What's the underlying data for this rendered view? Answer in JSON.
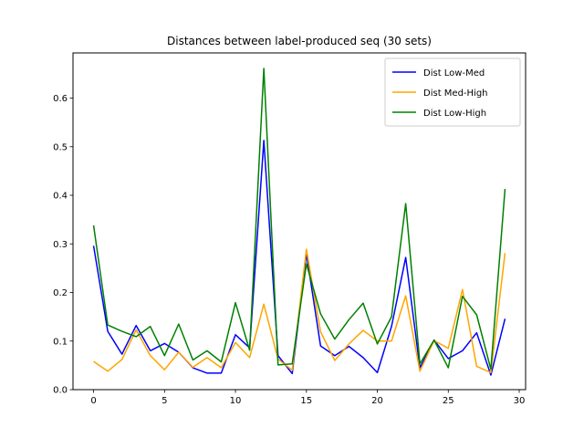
{
  "chart_data": {
    "type": "line",
    "title": "Distances between label-produced seq (30 sets)",
    "xlabel": "",
    "ylabel": "",
    "xlim": [
      -1.45,
      30.45
    ],
    "ylim": [
      0.0,
      0.693
    ],
    "xticks": [
      0,
      5,
      10,
      15,
      20,
      25,
      30
    ],
    "yticks": [
      0.0,
      0.1,
      0.2,
      0.3,
      0.4,
      0.5,
      0.6
    ],
    "grid": false,
    "legend_position": "top-right",
    "x": [
      0,
      1,
      2,
      3,
      4,
      5,
      6,
      7,
      8,
      9,
      10,
      11,
      12,
      13,
      14,
      15,
      16,
      17,
      18,
      19,
      20,
      21,
      22,
      23,
      24,
      25,
      26,
      27,
      28,
      29
    ],
    "series": [
      {
        "name": "Dist Low-Med",
        "color": "#0000ff",
        "values": [
          0.296,
          0.12,
          0.073,
          0.132,
          0.08,
          0.095,
          0.077,
          0.045,
          0.034,
          0.034,
          0.113,
          0.086,
          0.513,
          0.07,
          0.033,
          0.28,
          0.09,
          0.07,
          0.089,
          0.066,
          0.035,
          0.13,
          0.272,
          0.045,
          0.102,
          0.064,
          0.08,
          0.117,
          0.03,
          0.146
        ]
      },
      {
        "name": "Dist Med-High",
        "color": "#ffa500",
        "values": [
          0.058,
          0.038,
          0.062,
          0.123,
          0.07,
          0.041,
          0.077,
          0.046,
          0.066,
          0.045,
          0.097,
          0.066,
          0.176,
          0.063,
          0.04,
          0.289,
          0.119,
          0.06,
          0.094,
          0.122,
          0.1,
          0.1,
          0.193,
          0.038,
          0.101,
          0.085,
          0.206,
          0.048,
          0.035,
          0.281
        ]
      },
      {
        "name": "Dist Low-High",
        "color": "#008000",
        "values": [
          0.338,
          0.133,
          0.12,
          0.109,
          0.13,
          0.07,
          0.135,
          0.061,
          0.08,
          0.057,
          0.179,
          0.081,
          0.661,
          0.051,
          0.053,
          0.259,
          0.156,
          0.104,
          0.144,
          0.178,
          0.094,
          0.15,
          0.383,
          0.053,
          0.102,
          0.045,
          0.192,
          0.154,
          0.042,
          0.413
        ]
      }
    ]
  }
}
